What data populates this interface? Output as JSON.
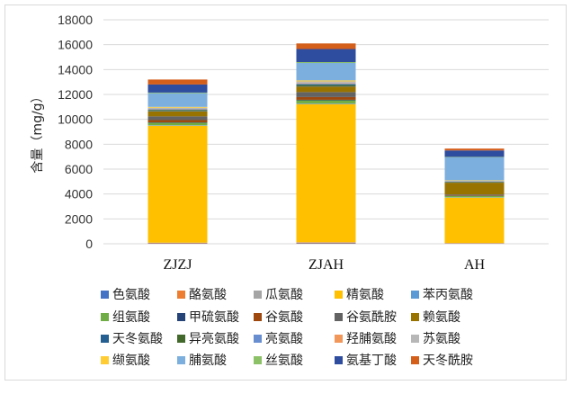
{
  "chart_data": {
    "type": "bar",
    "stacked": true,
    "ylabel": "含量（mg/g）",
    "ylim": [
      0,
      18000
    ],
    "yticks": [
      0,
      2000,
      4000,
      6000,
      8000,
      10000,
      12000,
      14000,
      16000,
      18000
    ],
    "grid": true,
    "legend_position": "bottom",
    "categories": [
      "ZJZJ",
      "ZJAH",
      "AH"
    ],
    "series": [
      {
        "name": "色氨酸",
        "color": "#4472C4",
        "values": [
          30,
          40,
          20
        ]
      },
      {
        "name": "酪氨酸",
        "color": "#ED7D31",
        "values": [
          40,
          60,
          30
        ]
      },
      {
        "name": "瓜氨酸",
        "color": "#A5A5A5",
        "values": [
          20,
          30,
          10
        ]
      },
      {
        "name": "精氨酸",
        "color": "#FFC000",
        "values": [
          9400,
          11100,
          3650
        ]
      },
      {
        "name": "苯丙氨酸",
        "color": "#5B9BD5",
        "values": [
          40,
          50,
          30
        ]
      },
      {
        "name": "组氨酸",
        "color": "#70AD47",
        "values": [
          200,
          250,
          100
        ]
      },
      {
        "name": "甲硫氨酸",
        "color": "#264478",
        "values": [
          30,
          40,
          20
        ]
      },
      {
        "name": "谷氨酸",
        "color": "#9E480E",
        "values": [
          180,
          220,
          40
        ]
      },
      {
        "name": "谷氨酰胺",
        "color": "#636363",
        "values": [
          300,
          400,
          60
        ]
      },
      {
        "name": "赖氨酸",
        "color": "#997300",
        "values": [
          400,
          450,
          950
        ]
      },
      {
        "name": "天冬氨酸",
        "color": "#255E91",
        "values": [
          40,
          50,
          30
        ]
      },
      {
        "name": "异亮氨酸",
        "color": "#43682B",
        "values": [
          80,
          100,
          40
        ]
      },
      {
        "name": "亮氨酸",
        "color": "#698ED0",
        "values": [
          60,
          80,
          30
        ]
      },
      {
        "name": "羟脯氨酸",
        "color": "#F1975A",
        "values": [
          20,
          30,
          10
        ]
      },
      {
        "name": "苏氨酸",
        "color": "#B7B7B7",
        "values": [
          100,
          150,
          50
        ]
      },
      {
        "name": "缬氨酸",
        "color": "#FFCD33",
        "values": [
          60,
          80,
          30
        ]
      },
      {
        "name": "脯氨酸",
        "color": "#7CAFDD",
        "values": [
          1100,
          1400,
          1850
        ]
      },
      {
        "name": "丝氨酸",
        "color": "#8CC168",
        "values": [
          50,
          70,
          30
        ]
      },
      {
        "name": "氨基丁酸",
        "color": "#2E4D9E",
        "values": [
          650,
          1050,
          520
        ]
      },
      {
        "name": "天冬酰胺",
        "color": "#D45F1B",
        "values": [
          400,
          450,
          150
        ]
      }
    ]
  }
}
